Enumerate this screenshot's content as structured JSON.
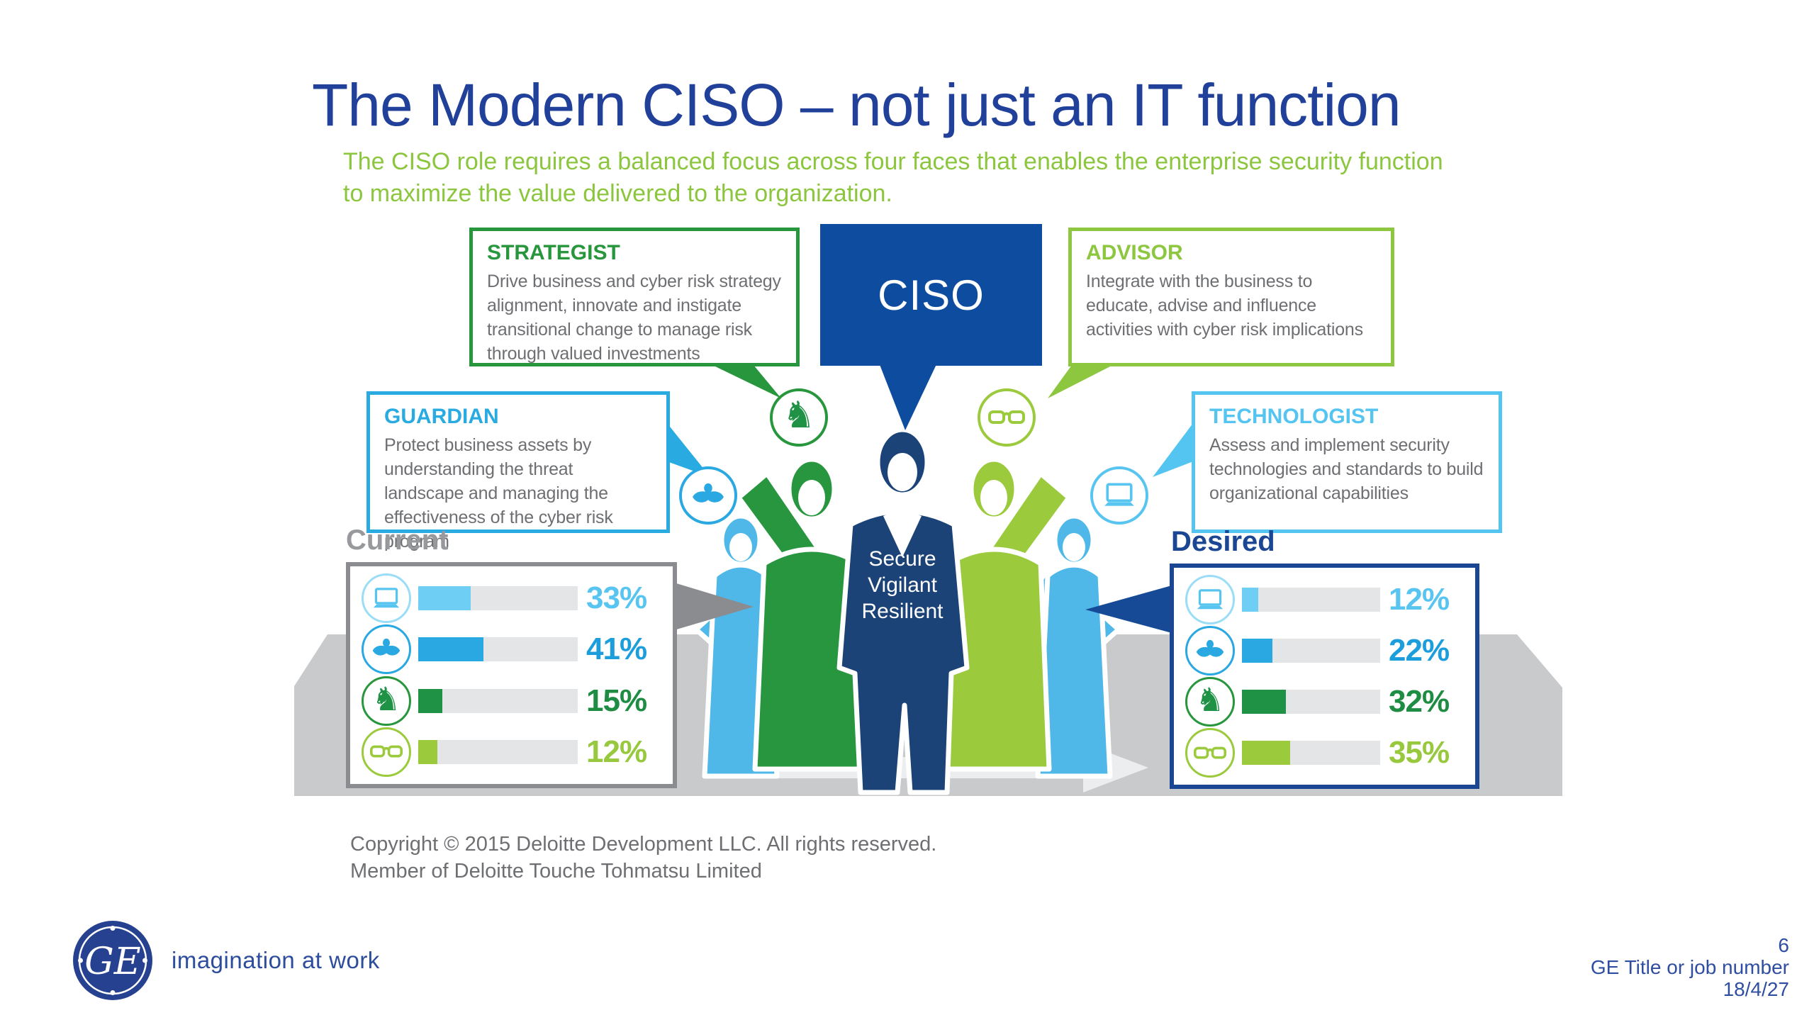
{
  "slide": {
    "title": "The Modern CISO – not just an IT function",
    "subtitle": "The CISO role requires a balanced focus across four faces that enables the enterprise security function to maximize the value delivered to the organization.",
    "ciso_label": "CISO",
    "caption": {
      "line1": "Secure",
      "line2": "Vigilant",
      "line3": "Resilient"
    }
  },
  "faces": {
    "strategist": {
      "title": "STRATEGIST",
      "body": "Drive business and cyber risk strategy alignment, innovate and instigate transitional change to manage risk through valued investments",
      "accent": "#27963C"
    },
    "advisor": {
      "title": "ADVISOR",
      "body": "Integrate with the business to educate, advise and influence activities with cyber risk implications",
      "accent": "#8DC63F"
    },
    "guardian": {
      "title": "GUARDIAN",
      "body": "Protect business assets by understanding the threat landscape and managing the effectiveness of the cyber risk program",
      "accent": "#29ABE2"
    },
    "technologist": {
      "title": "TECHNOLOGIST",
      "body": "Assess and implement security technologies and standards to build organizational capabilities",
      "accent": "#54C4F0"
    }
  },
  "chart_data": {
    "type": "bar",
    "categories": [
      "Technologist (laptop)",
      "Guardian (hands)",
      "Strategist (knight)",
      "Advisor (glasses)"
    ],
    "series": [
      {
        "name": "Current",
        "values": [
          33,
          41,
          15,
          12
        ]
      },
      {
        "name": "Desired",
        "values": [
          12,
          22,
          32,
          35
        ]
      }
    ],
    "unit": "%",
    "xlim": [
      0,
      100
    ]
  },
  "panels": {
    "current": {
      "label": "Current",
      "accent": "#929497",
      "rows": [
        {
          "icon": "laptop-icon",
          "value": 33,
          "display": "33%",
          "color": "#58C5F1"
        },
        {
          "icon": "hands-icon",
          "value": 41,
          "display": "41%",
          "color": "#29A8E2"
        },
        {
          "icon": "knight-icon",
          "value": 15,
          "display": "15%",
          "color": "#1F9245"
        },
        {
          "icon": "glasses-icon",
          "value": 12,
          "display": "12%",
          "color": "#9BCA3D"
        }
      ]
    },
    "desired": {
      "label": "Desired",
      "accent": "#164A96",
      "rows": [
        {
          "icon": "laptop-icon",
          "value": 12,
          "display": "12%",
          "color": "#58C5F1"
        },
        {
          "icon": "hands-icon",
          "value": 22,
          "display": "22%",
          "color": "#29A8E2"
        },
        {
          "icon": "knight-icon",
          "value": 32,
          "display": "32%",
          "color": "#1F9245"
        },
        {
          "icon": "glasses-icon",
          "value": 35,
          "display": "35%",
          "color": "#9BCA3D"
        }
      ]
    }
  },
  "footer": {
    "copyright_line1": "Copyright © 2015 Deloitte Development LLC. All rights reserved.",
    "copyright_line2": "Member of Deloitte Touche Tohmatsu Limited",
    "ge_monogram": "GE",
    "tagline": "imagination at work"
  },
  "page_info": {
    "page_number": "6",
    "job_title": "GE Title or job number",
    "date": "18/4/27"
  }
}
